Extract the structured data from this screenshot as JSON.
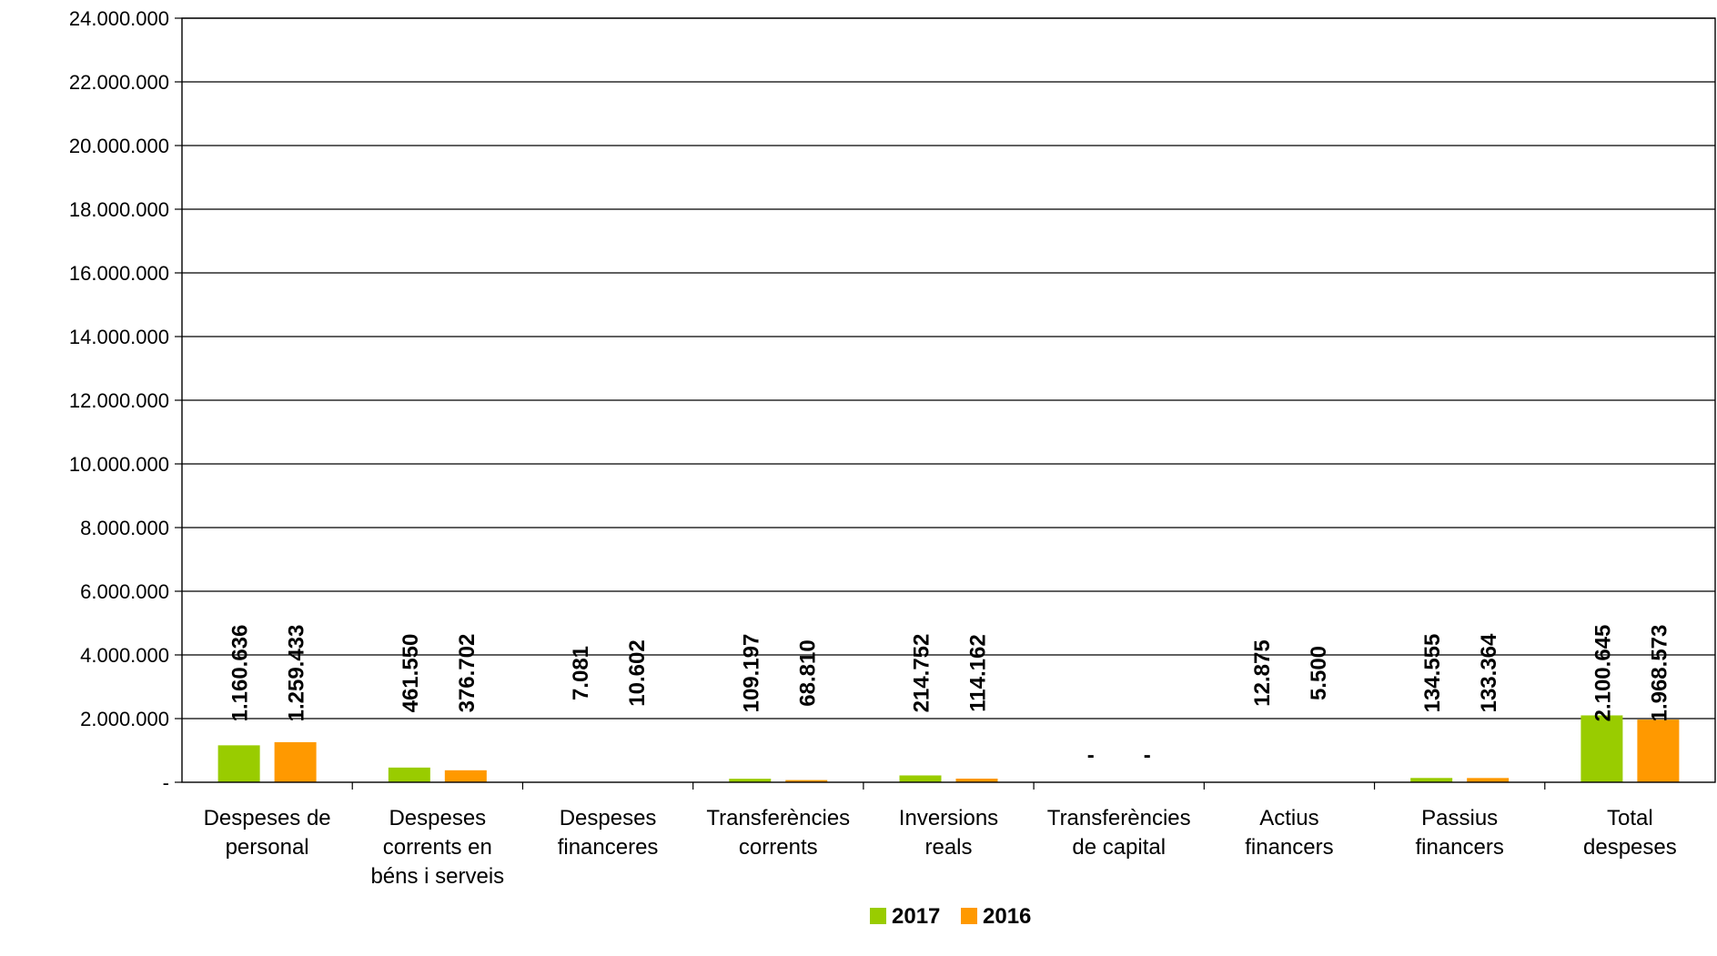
{
  "chart_data": {
    "type": "bar",
    "categories": [
      "Despeses de personal",
      "Despeses corrents en béns i serveis",
      "Despeses financeres",
      "Transferències corrents",
      "Inversions reals",
      "Transferències de capital",
      "Actius financers",
      "Passius financers",
      "Total despeses"
    ],
    "category_lines": [
      [
        "Despeses de",
        "personal"
      ],
      [
        "Despeses",
        "corrents en",
        "béns i serveis"
      ],
      [
        "Despeses",
        "financeres"
      ],
      [
        "Transferències",
        "corrents"
      ],
      [
        "Inversions",
        "reals"
      ],
      [
        "Transferències",
        "de capital"
      ],
      [
        "Actius",
        "financers"
      ],
      [
        "Passius",
        "financers"
      ],
      [
        "Total",
        "despeses"
      ]
    ],
    "series": [
      {
        "name": "2017",
        "color": "#99cc00",
        "values": [
          1160636,
          461550,
          7081,
          109197,
          214752,
          0,
          12875,
          134555,
          2100645
        ],
        "labels": [
          "1.160.636",
          "461.550",
          "7.081",
          "109.197",
          "214.752",
          "-",
          "12.875",
          "134.555",
          "2.100.645"
        ]
      },
      {
        "name": "2016",
        "color": "#ff9900",
        "values": [
          1259433,
          376702,
          10602,
          68810,
          114162,
          0,
          5500,
          133364,
          1968573
        ],
        "labels": [
          "1.259.433",
          "376.702",
          "10.602",
          "68.810",
          "114.162",
          "-",
          "5.500",
          "133.364",
          "1.968.573"
        ]
      }
    ],
    "ylim": [
      0,
      24000000
    ],
    "ytick_values": [
      0,
      2000000,
      4000000,
      6000000,
      8000000,
      10000000,
      12000000,
      14000000,
      16000000,
      18000000,
      20000000,
      22000000,
      24000000
    ],
    "ytick_labels": [
      "-",
      "2.000.000",
      "4.000.000",
      "6.000.000",
      "8.000.000",
      "10.000.000",
      "12.000.000",
      "14.000.000",
      "16.000.000",
      "18.000.000",
      "20.000.000",
      "22.000.000",
      "24.000.000"
    ],
    "grid": true,
    "legend": {
      "position": "bottom-center",
      "entries": [
        "2017",
        "2016"
      ]
    },
    "title": "",
    "xlabel": "",
    "ylabel": ""
  }
}
